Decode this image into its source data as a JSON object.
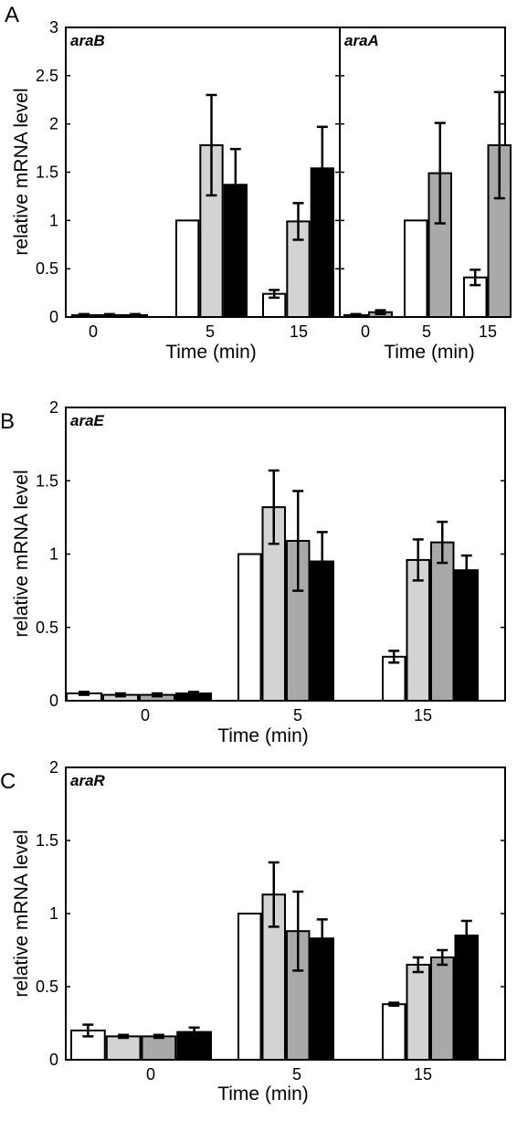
{
  "panels": {
    "A": {
      "letter": "A"
    },
    "B": {
      "letter": "B"
    },
    "C": {
      "letter": "C"
    }
  },
  "fills": [
    "#ffffff",
    "#d3d3d3",
    "#a9a9a9",
    "#000000"
  ],
  "chart_data": [
    {
      "id": "A-araB",
      "type": "bar",
      "panel": "A",
      "gene": "araB",
      "xlabel": "Time (min)",
      "ylabel": "relative mRNA level",
      "ylim": [
        0,
        3
      ],
      "yticks": [
        0,
        0.5,
        1,
        1.5,
        2,
        2.5,
        3
      ],
      "ytick_labels": [
        "0",
        "0.5",
        "1",
        "1.5",
        "2",
        "2.5",
        "3"
      ],
      "categories": [
        "0",
        "5",
        "15"
      ],
      "series": [
        {
          "fill": "#ffffff",
          "values": [
            0.02,
            1.0,
            0.24
          ],
          "errors": [
            0.01,
            0,
            0.04
          ]
        },
        {
          "fill": "#d3d3d3",
          "values": [
            0.02,
            1.78,
            0.99
          ],
          "errors": [
            0.01,
            0.52,
            0.19
          ]
        },
        {
          "fill": "#000000",
          "values": [
            0.02,
            1.37,
            1.54
          ],
          "errors": [
            0.01,
            0.37,
            0.43
          ]
        }
      ]
    },
    {
      "id": "A-araA",
      "type": "bar",
      "panel": "A",
      "gene": "araA",
      "xlabel": "Time (min)",
      "ylabel": "",
      "ylim": [
        0,
        3
      ],
      "yticks": [
        0,
        0.5,
        1,
        1.5,
        2,
        2.5,
        3
      ],
      "ytick_labels": [],
      "categories": [
        "0",
        "5",
        "15"
      ],
      "series": [
        {
          "fill": "#ffffff",
          "values": [
            0.02,
            1.0,
            0.41
          ],
          "errors": [
            0.01,
            0,
            0.08
          ]
        },
        {
          "fill": "#a9a9a9",
          "values": [
            0.05,
            1.49,
            1.78
          ],
          "errors": [
            0.02,
            0.52,
            0.55
          ]
        }
      ]
    },
    {
      "id": "B-araE",
      "type": "bar",
      "panel": "B",
      "gene": "araE",
      "xlabel": "Time (min)",
      "ylabel": "relative mRNA level",
      "ylim": [
        0,
        2
      ],
      "yticks": [
        0,
        0.5,
        1,
        1.5,
        2
      ],
      "ytick_labels": [
        "0",
        "0.5",
        "1",
        "1.5",
        "2"
      ],
      "categories": [
        "0",
        "5",
        "15"
      ],
      "series": [
        {
          "fill": "#ffffff",
          "values": [
            0.05,
            1.0,
            0.3
          ],
          "errors": [
            0.01,
            0,
            0.04
          ]
        },
        {
          "fill": "#d3d3d3",
          "values": [
            0.04,
            1.32,
            0.96
          ],
          "errors": [
            0.01,
            0.25,
            0.14
          ]
        },
        {
          "fill": "#a9a9a9",
          "values": [
            0.04,
            1.09,
            1.08
          ],
          "errors": [
            0.01,
            0.34,
            0.14
          ]
        },
        {
          "fill": "#000000",
          "values": [
            0.05,
            0.95,
            0.89
          ],
          "errors": [
            0.01,
            0.2,
            0.1
          ]
        }
      ]
    },
    {
      "id": "C-araR",
      "type": "bar",
      "panel": "C",
      "gene": "araR",
      "xlabel": "Time (min)",
      "ylabel": "relative mRNA level",
      "ylim": [
        0,
        2
      ],
      "yticks": [
        0,
        0.5,
        1,
        1.5,
        2
      ],
      "ytick_labels": [
        "0",
        "0.5",
        "1",
        "1.5",
        "2"
      ],
      "categories": [
        "0",
        "5",
        "15"
      ],
      "series": [
        {
          "fill": "#ffffff",
          "values": [
            0.2,
            1.0,
            0.38
          ],
          "errors": [
            0.04,
            0,
            0.01
          ]
        },
        {
          "fill": "#d3d3d3",
          "values": [
            0.16,
            1.13,
            0.65
          ],
          "errors": [
            0.01,
            0.22,
            0.05
          ]
        },
        {
          "fill": "#a9a9a9",
          "values": [
            0.16,
            0.88,
            0.7
          ],
          "errors": [
            0.01,
            0.27,
            0.05
          ]
        },
        {
          "fill": "#000000",
          "values": [
            0.19,
            0.83,
            0.85
          ],
          "errors": [
            0.03,
            0.13,
            0.1
          ]
        }
      ]
    }
  ]
}
